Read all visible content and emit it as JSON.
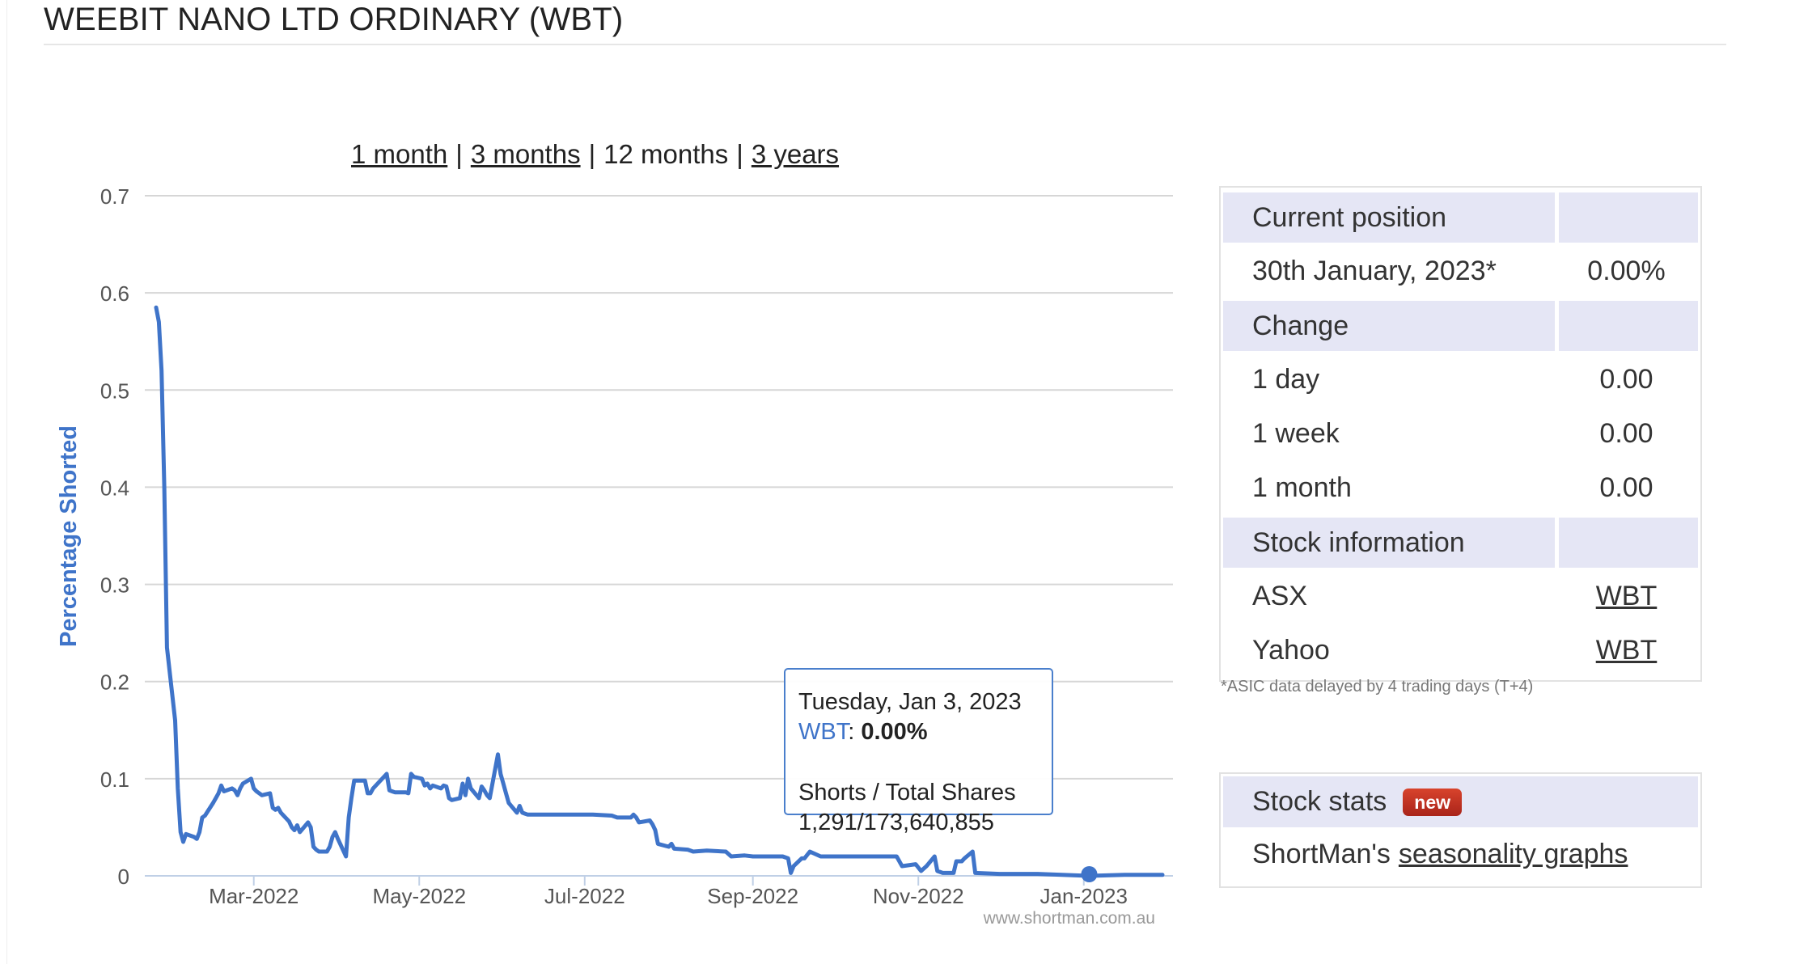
{
  "page": {
    "title": "WEEBIT NANO LTD ORDINARY (WBT)"
  },
  "range_nav": {
    "options": [
      "1 month",
      "3 months",
      "12 months",
      "3 years"
    ],
    "selected": "12 months"
  },
  "chart_data": {
    "type": "line",
    "ylabel": "Percentage Shorted",
    "xlabel": "",
    "ylim": [
      0,
      0.7
    ],
    "yticks": [
      "0",
      "0.1",
      "0.2",
      "0.3",
      "0.4",
      "0.5",
      "0.6",
      "0.7"
    ],
    "xticks": [
      "Mar-2022",
      "May-2022",
      "Jul-2022",
      "Sep-2022",
      "Nov-2022",
      "Jan-2023"
    ],
    "xrange": [
      "2022-01-24",
      "2023-01-30"
    ],
    "grid": true,
    "credit": "www.shortman.com.au",
    "series": [
      {
        "name": "WBT",
        "color": "#3f74c9",
        "points": [
          [
            "2022-01-24",
            0.585
          ],
          [
            "2022-01-25",
            0.57
          ],
          [
            "2022-01-26",
            0.52
          ],
          [
            "2022-01-27",
            0.4
          ],
          [
            "2022-01-28",
            0.235
          ],
          [
            "2022-01-31",
            0.16
          ],
          [
            "2022-02-01",
            0.09
          ],
          [
            "2022-02-02",
            0.045
          ],
          [
            "2022-02-03",
            0.035
          ],
          [
            "2022-02-04",
            0.043
          ],
          [
            "2022-02-07",
            0.04
          ],
          [
            "2022-02-08",
            0.038
          ],
          [
            "2022-02-09",
            0.045
          ],
          [
            "2022-02-10",
            0.06
          ],
          [
            "2022-02-11",
            0.062
          ],
          [
            "2022-02-14",
            0.075
          ],
          [
            "2022-02-15",
            0.08
          ],
          [
            "2022-02-16",
            0.085
          ],
          [
            "2022-02-17",
            0.093
          ],
          [
            "2022-02-18",
            0.087
          ],
          [
            "2022-02-21",
            0.09
          ],
          [
            "2022-02-22",
            0.088
          ],
          [
            "2022-02-23",
            0.083
          ],
          [
            "2022-02-24",
            0.09
          ],
          [
            "2022-02-25",
            0.095
          ],
          [
            "2022-02-28",
            0.1
          ],
          [
            "2022-03-01",
            0.09
          ],
          [
            "2022-03-02",
            0.087
          ],
          [
            "2022-03-03",
            0.085
          ],
          [
            "2022-03-04",
            0.083
          ],
          [
            "2022-03-07",
            0.085
          ],
          [
            "2022-03-08",
            0.07
          ],
          [
            "2022-03-09",
            0.068
          ],
          [
            "2022-03-10",
            0.07
          ],
          [
            "2022-03-11",
            0.065
          ],
          [
            "2022-03-14",
            0.056
          ],
          [
            "2022-03-15",
            0.05
          ],
          [
            "2022-03-16",
            0.047
          ],
          [
            "2022-03-17",
            0.052
          ],
          [
            "2022-03-18",
            0.045
          ],
          [
            "2022-03-21",
            0.055
          ],
          [
            "2022-03-22",
            0.05
          ],
          [
            "2022-03-23",
            0.03
          ],
          [
            "2022-03-24",
            0.027
          ],
          [
            "2022-03-25",
            0.025
          ],
          [
            "2022-03-28",
            0.025
          ],
          [
            "2022-03-29",
            0.03
          ],
          [
            "2022-03-30",
            0.04
          ],
          [
            "2022-03-31",
            0.045
          ],
          [
            "2022-04-01",
            0.038
          ],
          [
            "2022-04-04",
            0.02
          ],
          [
            "2022-04-05",
            0.06
          ],
          [
            "2022-04-06",
            0.08
          ],
          [
            "2022-04-07",
            0.098
          ],
          [
            "2022-04-08",
            0.098
          ],
          [
            "2022-04-11",
            0.098
          ],
          [
            "2022-04-12",
            0.085
          ],
          [
            "2022-04-13",
            0.085
          ],
          [
            "2022-04-14",
            0.09
          ],
          [
            "2022-04-19",
            0.105
          ],
          [
            "2022-04-20",
            0.088
          ],
          [
            "2022-04-21",
            0.087
          ],
          [
            "2022-04-22",
            0.086
          ],
          [
            "2022-04-26",
            0.086
          ],
          [
            "2022-04-27",
            0.085
          ],
          [
            "2022-04-28",
            0.105
          ],
          [
            "2022-04-29",
            0.102
          ],
          [
            "2022-05-02",
            0.1
          ],
          [
            "2022-05-03",
            0.093
          ],
          [
            "2022-05-04",
            0.095
          ],
          [
            "2022-05-05",
            0.09
          ],
          [
            "2022-05-06",
            0.093
          ],
          [
            "2022-05-09",
            0.09
          ],
          [
            "2022-05-10",
            0.093
          ],
          [
            "2022-05-11",
            0.092
          ],
          [
            "2022-05-12",
            0.08
          ],
          [
            "2022-05-13",
            0.078
          ],
          [
            "2022-05-16",
            0.08
          ],
          [
            "2022-05-17",
            0.095
          ],
          [
            "2022-05-18",
            0.083
          ],
          [
            "2022-05-19",
            0.1
          ],
          [
            "2022-05-20",
            0.09
          ],
          [
            "2022-05-23",
            0.08
          ],
          [
            "2022-05-24",
            0.092
          ],
          [
            "2022-05-25",
            0.088
          ],
          [
            "2022-05-26",
            0.083
          ],
          [
            "2022-05-27",
            0.08
          ],
          [
            "2022-05-30",
            0.125
          ],
          [
            "2022-05-31",
            0.105
          ],
          [
            "2022-06-01",
            0.095
          ],
          [
            "2022-06-02",
            0.085
          ],
          [
            "2022-06-03",
            0.075
          ],
          [
            "2022-06-06",
            0.065
          ],
          [
            "2022-06-07",
            0.072
          ],
          [
            "2022-06-08",
            0.065
          ],
          [
            "2022-06-09",
            0.064
          ],
          [
            "2022-06-10",
            0.063
          ],
          [
            "2022-06-14",
            0.063
          ],
          [
            "2022-06-20",
            0.063
          ],
          [
            "2022-06-27",
            0.063
          ],
          [
            "2022-07-04",
            0.063
          ],
          [
            "2022-07-11",
            0.062
          ],
          [
            "2022-07-13",
            0.06
          ],
          [
            "2022-07-18",
            0.06
          ],
          [
            "2022-07-19",
            0.063
          ],
          [
            "2022-07-20",
            0.06
          ],
          [
            "2022-07-21",
            0.055
          ],
          [
            "2022-07-25",
            0.057
          ],
          [
            "2022-07-26",
            0.053
          ],
          [
            "2022-07-27",
            0.047
          ],
          [
            "2022-07-28",
            0.033
          ],
          [
            "2022-08-01",
            0.03
          ],
          [
            "2022-08-02",
            0.033
          ],
          [
            "2022-08-03",
            0.028
          ],
          [
            "2022-08-08",
            0.027
          ],
          [
            "2022-08-10",
            0.025
          ],
          [
            "2022-08-15",
            0.026
          ],
          [
            "2022-08-22",
            0.025
          ],
          [
            "2022-08-24",
            0.02
          ],
          [
            "2022-08-29",
            0.021
          ],
          [
            "2022-09-01",
            0.02
          ],
          [
            "2022-09-06",
            0.02
          ],
          [
            "2022-09-12",
            0.02
          ],
          [
            "2022-09-14",
            0.018
          ],
          [
            "2022-09-15",
            0.003
          ],
          [
            "2022-09-16",
            0.01
          ],
          [
            "2022-09-19",
            0.018
          ],
          [
            "2022-09-20",
            0.018
          ],
          [
            "2022-09-22",
            0.025
          ],
          [
            "2022-09-26",
            0.02
          ],
          [
            "2022-10-24",
            0.02
          ],
          [
            "2022-10-26",
            0.01
          ],
          [
            "2022-10-31",
            0.012
          ],
          [
            "2022-11-02",
            0.005
          ],
          [
            "2022-11-04",
            0.01
          ],
          [
            "2022-11-07",
            0.02
          ],
          [
            "2022-11-08",
            0.005
          ],
          [
            "2022-11-10",
            0.003
          ],
          [
            "2022-11-14",
            0.003
          ],
          [
            "2022-11-15",
            0.015
          ],
          [
            "2022-11-17",
            0.015
          ],
          [
            "2022-11-18",
            0.018
          ],
          [
            "2022-11-21",
            0.025
          ],
          [
            "2022-11-22",
            0.003
          ],
          [
            "2022-12-01",
            0.002
          ],
          [
            "2022-12-15",
            0.002
          ],
          [
            "2023-01-03",
            0.0
          ],
          [
            "2023-01-16",
            0.001
          ],
          [
            "2023-01-30",
            0.001
          ]
        ]
      }
    ]
  },
  "tooltip": {
    "date": "Tuesday, Jan 3, 2023",
    "series": "WBT",
    "value": "0.00%",
    "shares_label": "Shorts / Total Shares",
    "shares_value": "1,291/173,640,855"
  },
  "sidebar": {
    "rows": [
      {
        "label": "Current position",
        "value": "",
        "header": true,
        "link": false
      },
      {
        "label": "30th January, 2023*",
        "value": "0.00%",
        "header": false,
        "link": false
      },
      {
        "label": "Change",
        "value": "",
        "header": true,
        "link": false
      },
      {
        "label": "1 day",
        "value": "0.00",
        "header": false,
        "link": false
      },
      {
        "label": "1 week",
        "value": "0.00",
        "header": false,
        "link": false
      },
      {
        "label": "1 month",
        "value": "0.00",
        "header": false,
        "link": false
      },
      {
        "label": "Stock information",
        "value": "",
        "header": true,
        "link": false
      },
      {
        "label": "ASX",
        "value": "WBT",
        "header": false,
        "link": true
      },
      {
        "label": "Yahoo",
        "value": "WBT",
        "header": false,
        "link": true
      }
    ],
    "note": "*ASIC data delayed by 4 trading days (T+4)"
  },
  "stats": {
    "title": "Stock stats",
    "badge": "new",
    "line_prefix": "ShortMan's",
    "line_link": "seasonality graphs"
  }
}
